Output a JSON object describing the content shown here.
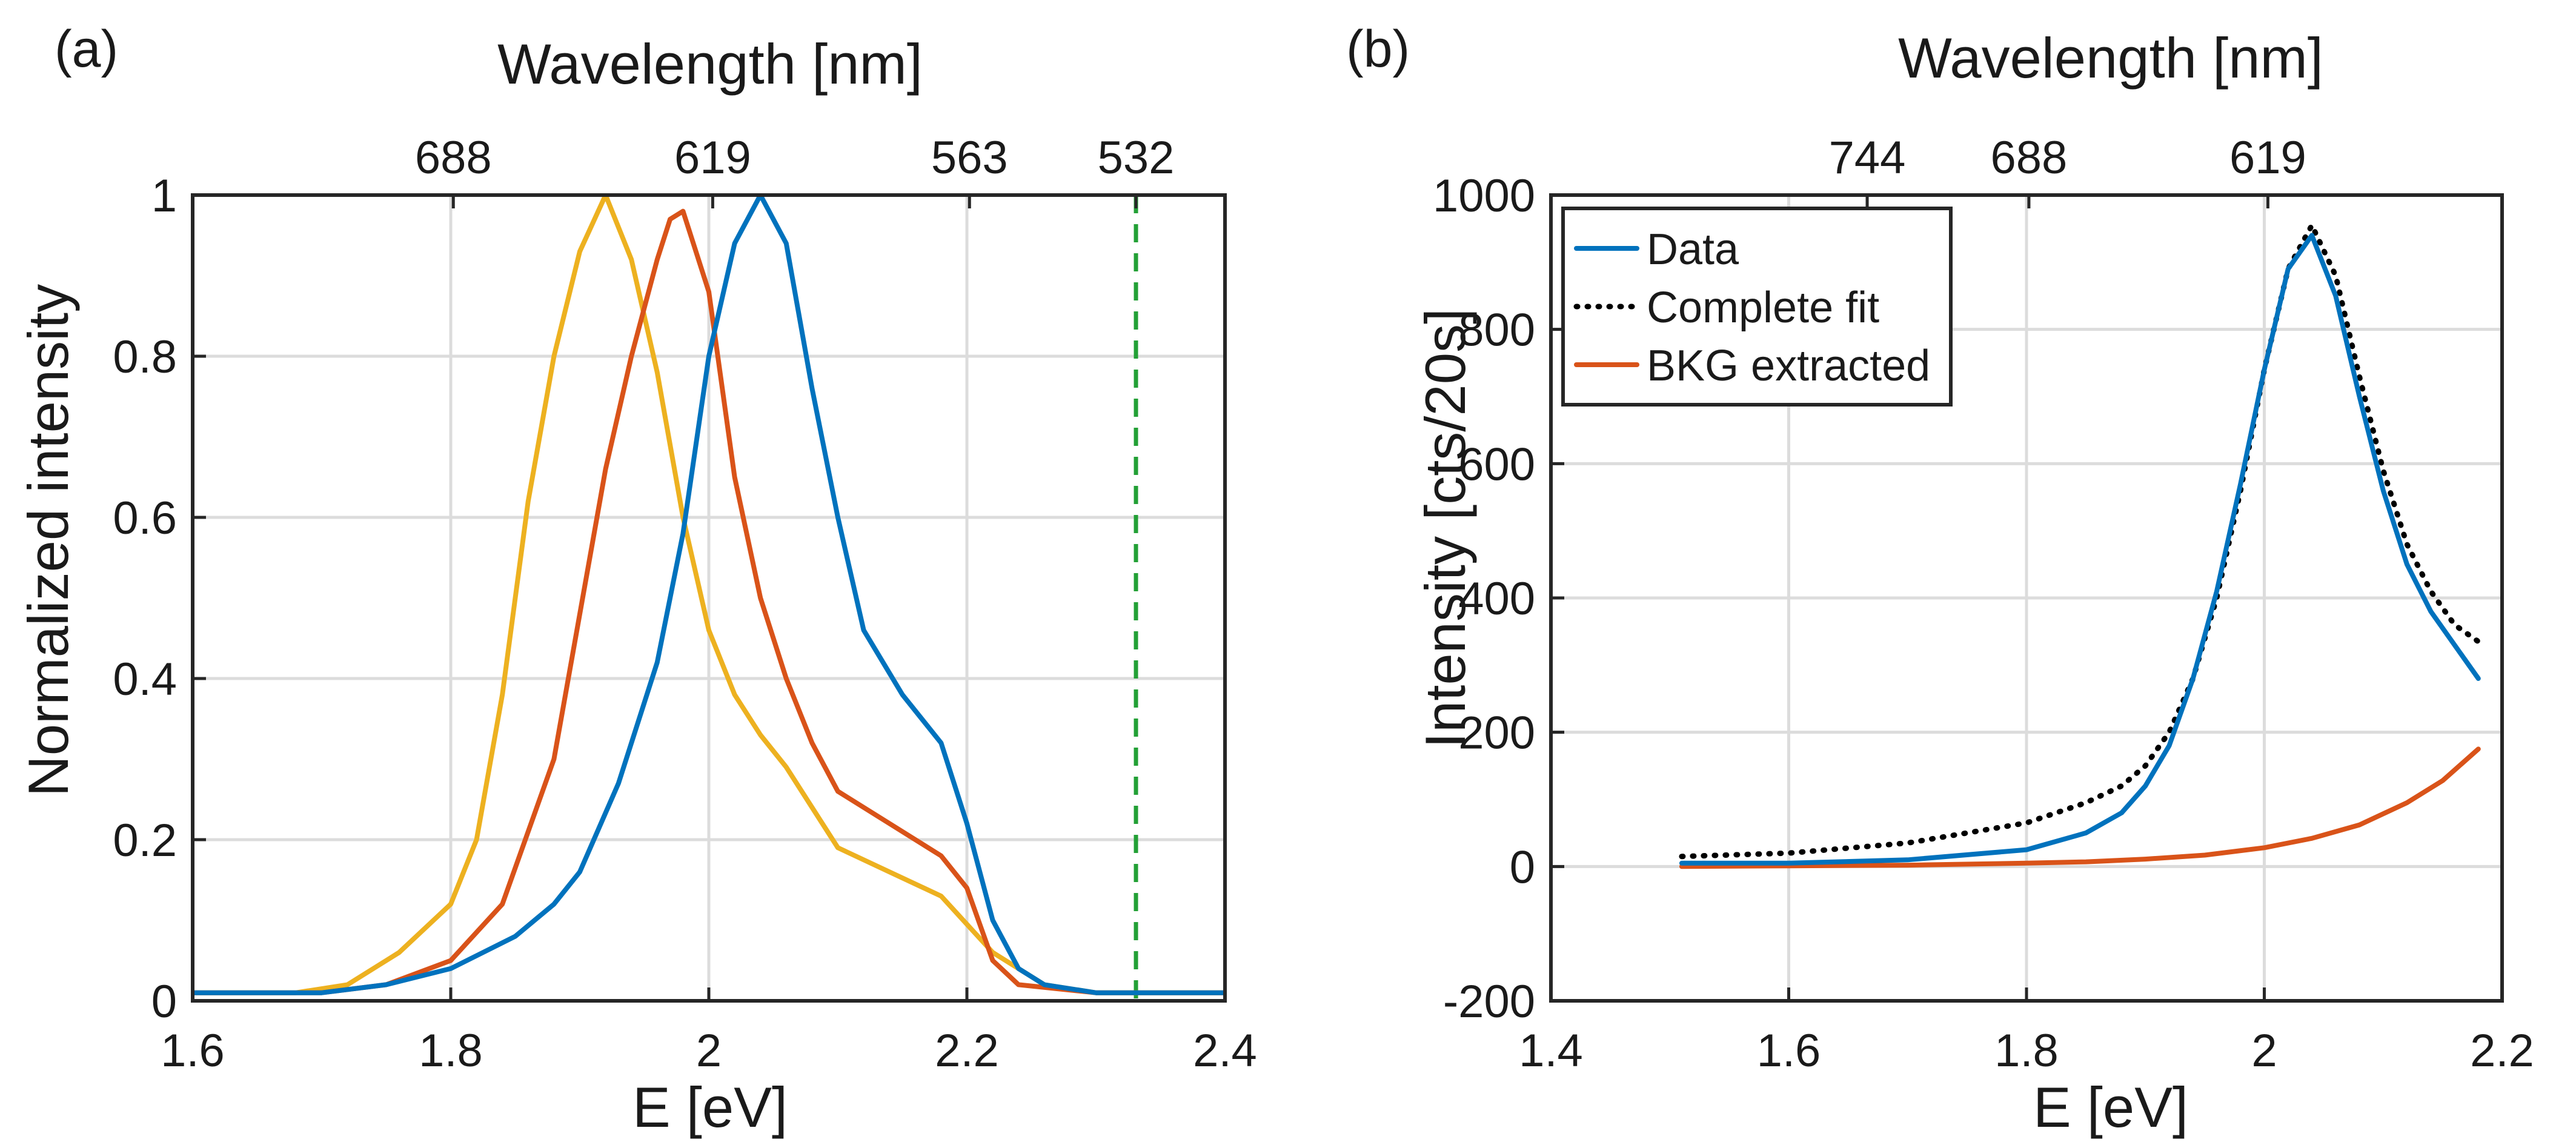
{
  "chart_data": [
    {
      "type": "line",
      "panel_label": "(a)",
      "xlabel": "E [eV]",
      "ylabel": "Normalized intensity",
      "top_xlabel": "Wavelength [nm]",
      "xlim": [
        1.6,
        2.4
      ],
      "ylim": [
        0,
        1
      ],
      "x_ticks": [
        1.6,
        1.8,
        2.0,
        2.2,
        2.4
      ],
      "x_tick_labels": [
        "1.6",
        "1.8",
        "2",
        "2.2",
        "2.4"
      ],
      "y_ticks": [
        0,
        0.2,
        0.4,
        0.6,
        0.8,
        1.0
      ],
      "y_tick_labels": [
        "0",
        "0.2",
        "0.4",
        "0.6",
        "0.8",
        "1"
      ],
      "top_ticks": [
        {
          "label": "688",
          "energy_eV": 1.802
        },
        {
          "label": "619",
          "energy_eV": 2.003
        },
        {
          "label": "563",
          "energy_eV": 2.202
        },
        {
          "label": "532",
          "energy_eV": 2.331
        }
      ],
      "grid": true,
      "legend": "none",
      "series": [
        {
          "color": "#0072BD",
          "x": [
            1.6,
            1.7,
            1.75,
            1.8,
            1.85,
            1.88,
            1.9,
            1.93,
            1.96,
            1.98,
            2.0,
            2.02,
            2.04,
            2.06,
            2.08,
            2.1,
            2.12,
            2.15,
            2.18,
            2.2,
            2.22,
            2.24,
            2.26,
            2.3,
            2.4
          ],
          "y": [
            0.01,
            0.01,
            0.02,
            0.04,
            0.08,
            0.12,
            0.16,
            0.27,
            0.42,
            0.58,
            0.8,
            0.94,
            1.0,
            0.94,
            0.76,
            0.6,
            0.46,
            0.38,
            0.32,
            0.22,
            0.1,
            0.04,
            0.02,
            0.01,
            0.01
          ]
        },
        {
          "color": "#D95319",
          "x": [
            1.6,
            1.7,
            1.75,
            1.8,
            1.84,
            1.88,
            1.9,
            1.92,
            1.94,
            1.96,
            1.97,
            1.98,
            2.0,
            2.02,
            2.04,
            2.06,
            2.08,
            2.1,
            2.14,
            2.18,
            2.2,
            2.22,
            2.24,
            2.3,
            2.4
          ],
          "y": [
            0.01,
            0.01,
            0.02,
            0.05,
            0.12,
            0.3,
            0.48,
            0.66,
            0.8,
            0.92,
            0.97,
            0.98,
            0.88,
            0.65,
            0.5,
            0.4,
            0.32,
            0.26,
            0.22,
            0.18,
            0.14,
            0.05,
            0.02,
            0.01,
            0.01
          ]
        },
        {
          "color": "#EDB120",
          "x": [
            1.6,
            1.68,
            1.72,
            1.76,
            1.8,
            1.82,
            1.84,
            1.86,
            1.88,
            1.9,
            1.92,
            1.94,
            1.96,
            1.98,
            2.0,
            2.02,
            2.04,
            2.06,
            2.08,
            2.1,
            2.14,
            2.18,
            2.22,
            2.26,
            2.3,
            2.4
          ],
          "y": [
            0.01,
            0.01,
            0.02,
            0.06,
            0.12,
            0.2,
            0.38,
            0.62,
            0.8,
            0.93,
            1.0,
            0.92,
            0.78,
            0.6,
            0.46,
            0.38,
            0.33,
            0.29,
            0.24,
            0.19,
            0.16,
            0.13,
            0.06,
            0.02,
            0.01,
            0.01
          ]
        }
      ],
      "vlines": [
        {
          "x": 2.331,
          "color": "#23a036",
          "style": "dashed"
        }
      ]
    },
    {
      "type": "line",
      "panel_label": "(b)",
      "xlabel": "E [eV]",
      "ylabel": "Intensity [cts/20s]",
      "top_xlabel": "Wavelength [nm]",
      "xlim": [
        1.4,
        2.2
      ],
      "ylim": [
        -200,
        1000
      ],
      "x_ticks": [
        1.4,
        1.6,
        1.8,
        2.0,
        2.2
      ],
      "x_tick_labels": [
        "1.4",
        "1.6",
        "1.8",
        "2",
        "2.2"
      ],
      "y_ticks": [
        -200,
        0,
        200,
        400,
        600,
        800,
        1000
      ],
      "y_tick_labels": [
        "-200",
        "0",
        "200",
        "400",
        "600",
        "800",
        "1000"
      ],
      "top_ticks": [
        {
          "label": "744",
          "energy_eV": 1.666
        },
        {
          "label": "688",
          "energy_eV": 1.802
        },
        {
          "label": "619",
          "energy_eV": 2.003
        }
      ],
      "grid": true,
      "legend": "top-left",
      "series": [
        {
          "name": "Data",
          "color": "#0072BD",
          "style": "solid",
          "x": [
            1.51,
            1.6,
            1.7,
            1.8,
            1.85,
            1.88,
            1.9,
            1.92,
            1.94,
            1.96,
            1.98,
            2.0,
            2.02,
            2.04,
            2.06,
            2.08,
            2.1,
            2.12,
            2.14,
            2.16,
            2.18
          ],
          "y": [
            5,
            5,
            10,
            25,
            50,
            80,
            120,
            180,
            280,
            410,
            570,
            740,
            890,
            940,
            850,
            700,
            560,
            450,
            380,
            330,
            280
          ]
        },
        {
          "name": "Complete fit",
          "color": "#000000",
          "style": "dotted",
          "x": [
            1.51,
            1.6,
            1.7,
            1.8,
            1.85,
            1.88,
            1.9,
            1.92,
            1.94,
            1.96,
            1.98,
            2.0,
            2.02,
            2.04,
            2.06,
            2.08,
            2.1,
            2.12,
            2.14,
            2.16,
            2.18
          ],
          "y": [
            15,
            20,
            35,
            65,
            95,
            120,
            150,
            200,
            280,
            400,
            560,
            740,
            890,
            955,
            880,
            730,
            590,
            480,
            410,
            360,
            335
          ]
        },
        {
          "name": "BKG extracted",
          "color": "#D95319",
          "style": "solid",
          "x": [
            1.51,
            1.6,
            1.7,
            1.8,
            1.85,
            1.9,
            1.95,
            2.0,
            2.04,
            2.08,
            2.12,
            2.15,
            2.18
          ],
          "y": [
            0,
            1,
            2,
            5,
            7,
            11,
            17,
            28,
            42,
            62,
            95,
            128,
            175
          ]
        }
      ]
    }
  ]
}
